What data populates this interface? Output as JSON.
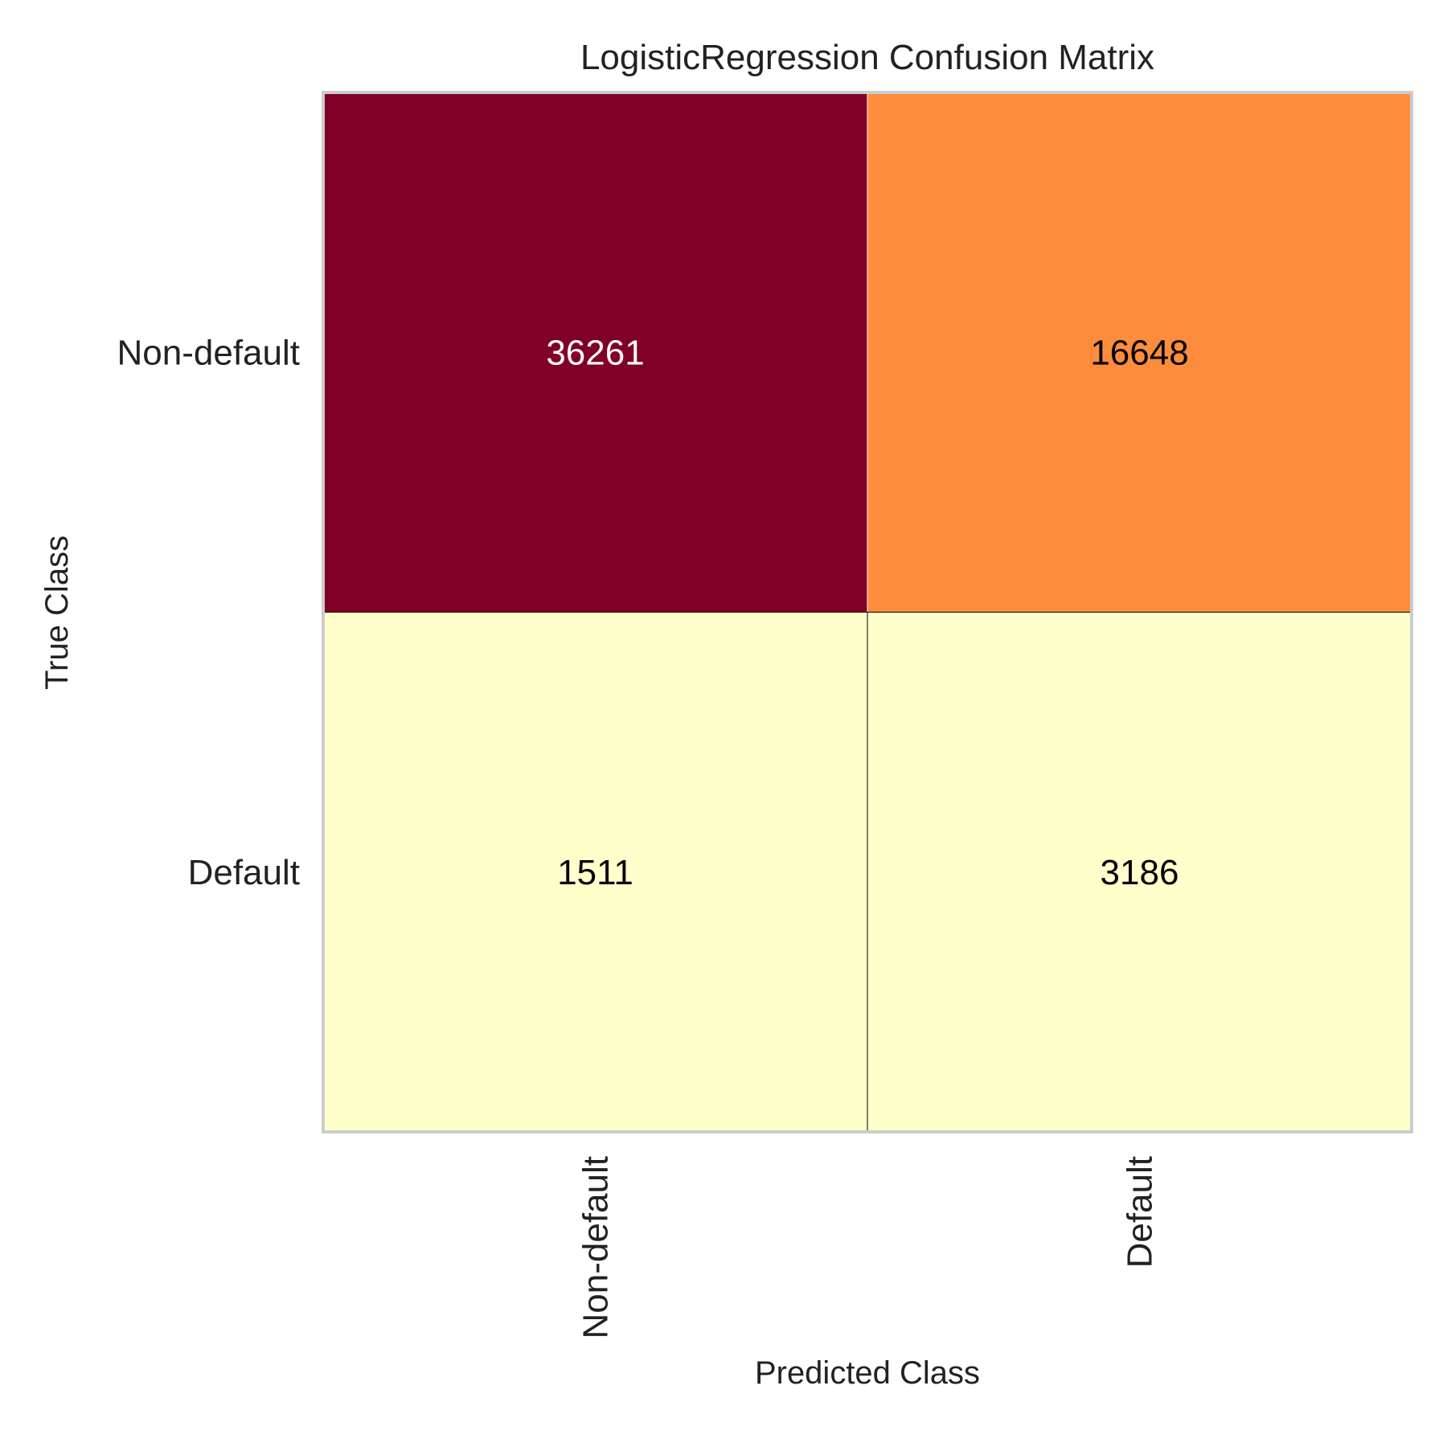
{
  "chart_data": {
    "type": "heatmap",
    "title": "LogisticRegression Confusion Matrix",
    "xlabel": "Predicted Class",
    "ylabel": "True Class",
    "x_categories": [
      "Non-default",
      "Default"
    ],
    "y_categories": [
      "Non-default",
      "Default"
    ],
    "matrix": [
      [
        36261,
        16648
      ],
      [
        1511,
        3186
      ]
    ],
    "cell_colors": [
      [
        "#800026",
        "#fd8d3c"
      ],
      [
        "#ffffcc",
        "#ffffcc"
      ]
    ],
    "cell_text_colors": [
      [
        "#ffffff",
        "#000000"
      ],
      [
        "#000000",
        "#000000"
      ]
    ],
    "colormap": "YlOrRd",
    "grid": false
  }
}
